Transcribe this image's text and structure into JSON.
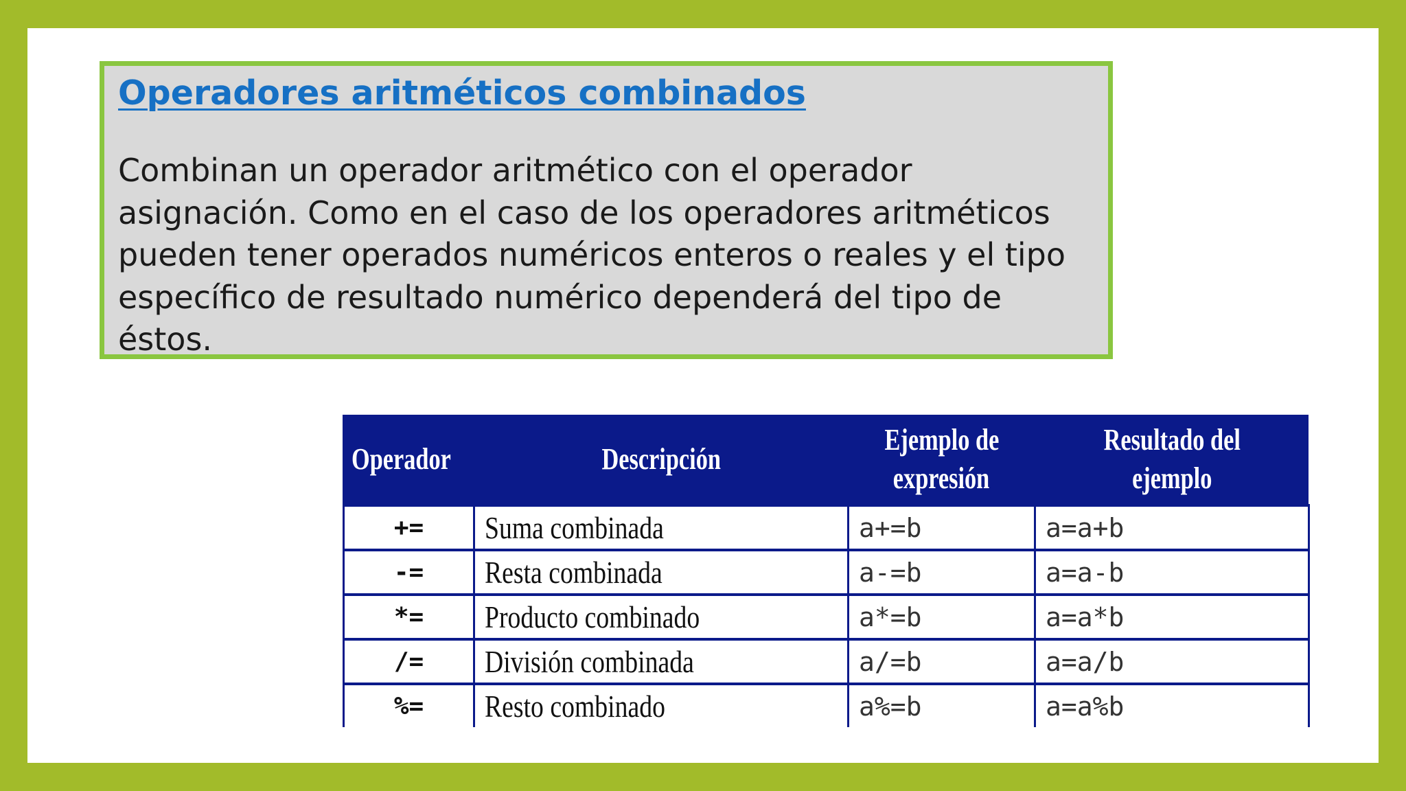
{
  "slide": {
    "title": "Operadores aritméticos combinados",
    "body": "Combinan un operador aritmético con el operador asignación. Como en el caso de los operadores aritméticos pueden tener operados numéricos enteros o reales y el tipo específico de resultado numérico dependerá del tipo de éstos."
  },
  "table": {
    "headers": {
      "operator": "Operador",
      "description": "Descripción",
      "example_line1": "Ejemplo de",
      "example_line2": "expresión",
      "result": "Resultado del ejemplo"
    },
    "rows": [
      {
        "operator": "+=",
        "description": "Suma combinada",
        "example": "a+=b",
        "result": "a=a+b"
      },
      {
        "operator": "-=",
        "description": "Resta combinada",
        "example": "a-=b",
        "result": "a=a-b"
      },
      {
        "operator": "*=",
        "description": "Producto combinado",
        "example": "a*=b",
        "result": "a=a*b"
      },
      {
        "operator": "/=",
        "description": "División combinada",
        "example": "a/=b",
        "result": "a=a/b"
      },
      {
        "operator": "%=",
        "description": "Resto combinado",
        "example": "a%=b",
        "result": "a=a%b"
      }
    ]
  },
  "colors": {
    "frame": "#a2bb2a",
    "box_border": "#8ac640",
    "box_fill": "#d9d9d9",
    "title": "#1670c4",
    "table_header": "#0b1a8a"
  }
}
